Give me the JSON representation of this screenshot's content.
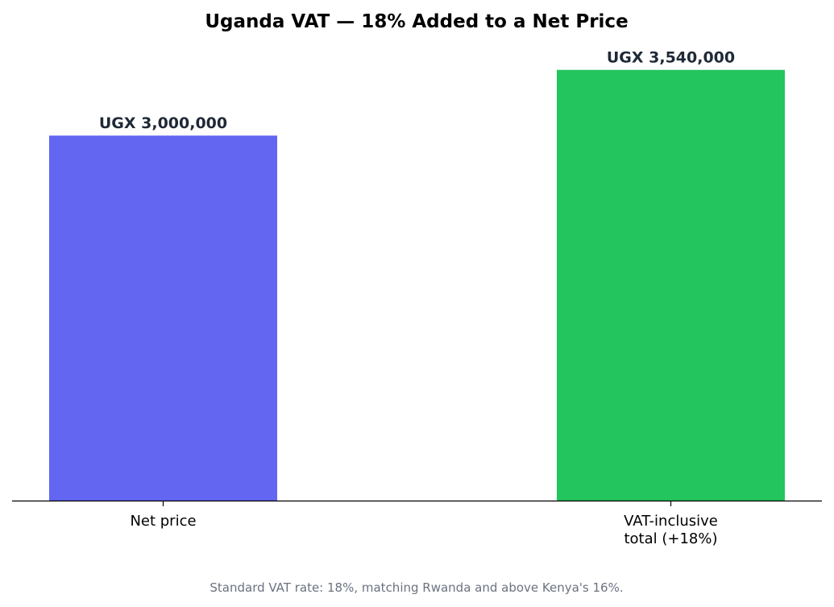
{
  "chart_data": {
    "type": "bar",
    "title": "Uganda VAT — 18% Added to a Net Price",
    "xlabel": "",
    "ylabel": "",
    "ylim": [
      0,
      3717000
    ],
    "categories": [
      [
        "Net price"
      ],
      [
        "VAT-inclusive",
        "total (+18%)"
      ]
    ],
    "values": [
      3000000,
      3540000
    ],
    "data_labels": [
      "UGX 3,000,000",
      "UGX 3,540,000"
    ],
    "colors": [
      "#6366f1",
      "#22c55e"
    ],
    "grid": false,
    "legend": "none"
  },
  "footnote": "Standard VAT rate: 18%, matching Rwanda and above Kenya's 16%."
}
